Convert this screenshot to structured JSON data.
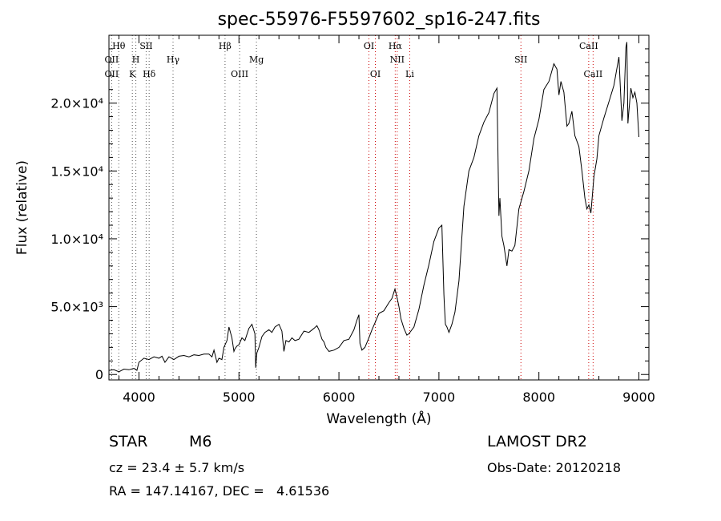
{
  "chart_data": {
    "type": "line",
    "title": "spec-55976-F5597602_sp16-247.fits",
    "xlabel": "Wavelength (Å)",
    "ylabel": "Flux (relative)",
    "xlim": [
      3700,
      9100
    ],
    "ylim": [
      -400,
      25000
    ],
    "x_ticks": [
      {
        "value": 4000,
        "label": "4000"
      },
      {
        "value": 5000,
        "label": "5000"
      },
      {
        "value": 6000,
        "label": "6000"
      },
      {
        "value": 7000,
        "label": "7000"
      },
      {
        "value": 8000,
        "label": "8000"
      },
      {
        "value": 9000,
        "label": "9000"
      }
    ],
    "y_ticks": [
      {
        "value": 0,
        "label": "0"
      },
      {
        "value": 5000,
        "label": "5.0×10³"
      },
      {
        "value": 10000,
        "label": "1.0×10⁴"
      },
      {
        "value": 15000,
        "label": "1.5×10⁴"
      },
      {
        "value": 20000,
        "label": "2.0×10⁴"
      }
    ],
    "series": [
      {
        "color": "#000000",
        "x": [
          3700,
          3750,
          3800,
          3850,
          3900,
          3950,
          3980,
          4000,
          4050,
          4100,
          4150,
          4200,
          4230,
          4260,
          4300,
          4350,
          4400,
          4450,
          4500,
          4550,
          4600,
          4650,
          4700,
          4730,
          4750,
          4780,
          4800,
          4830,
          4850,
          4880,
          4900,
          4930,
          4950,
          4960,
          4980,
          5000,
          5030,
          5060,
          5100,
          5130,
          5160,
          5168,
          5172,
          5180,
          5200,
          5230,
          5260,
          5300,
          5330,
          5360,
          5400,
          5430,
          5450,
          5470,
          5500,
          5530,
          5560,
          5600,
          5650,
          5700,
          5750,
          5780,
          5800,
          5830,
          5850,
          5870,
          5900,
          5950,
          6000,
          6050,
          6100,
          6150,
          6180,
          6200,
          6210,
          6230,
          6260,
          6300,
          6330,
          6360,
          6400,
          6450,
          6500,
          6530,
          6560,
          6580,
          6600,
          6620,
          6650,
          6680,
          6700,
          6750,
          6800,
          6850,
          6900,
          6950,
          7000,
          7030,
          7050,
          7055,
          7065,
          7080,
          7100,
          7130,
          7160,
          7200,
          7250,
          7300,
          7350,
          7400,
          7450,
          7500,
          7550,
          7580,
          7590,
          7600,
          7610,
          7630,
          7650,
          7680,
          7700,
          7730,
          7760,
          7800,
          7850,
          7900,
          7950,
          8000,
          8050,
          8100,
          8150,
          8180,
          8200,
          8220,
          8250,
          8280,
          8300,
          8330,
          8360,
          8400,
          8430,
          8460,
          8480,
          8500,
          8520,
          8550,
          8580,
          8600,
          8650,
          8700,
          8750,
          8800,
          8830,
          8850,
          8870,
          8880,
          8890,
          8900,
          8920,
          8940,
          8960,
          8980,
          9000
        ],
        "y": [
          300,
          350,
          200,
          400,
          350,
          450,
          300,
          900,
          1200,
          1100,
          1300,
          1200,
          1350,
          900,
          1300,
          1100,
          1350,
          1400,
          1300,
          1450,
          1400,
          1500,
          1500,
          1300,
          1800,
          900,
          1200,
          1100,
          2000,
          2500,
          3500,
          2700,
          1700,
          1900,
          2100,
          2200,
          2700,
          2500,
          3400,
          3700,
          3000,
          500,
          900,
          1600,
          2000,
          2800,
          3100,
          3300,
          3100,
          3500,
          3700,
          3200,
          1700,
          2500,
          2400,
          2700,
          2500,
          2600,
          3200,
          3100,
          3400,
          3600,
          3300,
          2600,
          2400,
          2000,
          1700,
          1800,
          2000,
          2500,
          2600,
          3300,
          4000,
          4400,
          2300,
          1800,
          2000,
          2700,
          3300,
          3800,
          4500,
          4700,
          5300,
          5600,
          6300,
          5700,
          5000,
          4100,
          3400,
          2900,
          3000,
          3500,
          4800,
          6600,
          8100,
          9800,
          10800,
          11000,
          5900,
          5000,
          3700,
          3500,
          3100,
          3700,
          4600,
          6900,
          12400,
          15000,
          16000,
          17600,
          18600,
          19300,
          20700,
          21100,
          16600,
          11700,
          13000,
          10200,
          9500,
          8000,
          9200,
          9100,
          9500,
          12200,
          13500,
          15000,
          17400,
          18800,
          21000,
          21600,
          22900,
          22500,
          20600,
          21600,
          20800,
          18300,
          18500,
          19400,
          17600,
          16800,
          15000,
          13000,
          12200,
          12500,
          11900,
          14600,
          15900,
          17600,
          18900,
          20100,
          21300,
          23400,
          18700,
          20000,
          24100,
          24500,
          18500,
          19400,
          21100,
          20400,
          20800,
          20000,
          17500
        ]
      }
    ],
    "line_markers": [
      {
        "label": "Hθ",
        "wavelength": 3798,
        "row": 1
      },
      {
        "label": "OII",
        "wavelength": 3727,
        "row": 2
      },
      {
        "label": "OII",
        "wavelength": 3727,
        "row": 3
      },
      {
        "label": "SII",
        "wavelength": 4072,
        "row": 1
      },
      {
        "label": "H",
        "wavelength": 3969,
        "row": 2
      },
      {
        "label": "K",
        "wavelength": 3934,
        "row": 3
      },
      {
        "label": "Hδ",
        "wavelength": 4102,
        "row": 3
      },
      {
        "label": "Hγ",
        "wavelength": 4341,
        "row": 2
      },
      {
        "label": "Hβ",
        "wavelength": 4861,
        "row": 1
      },
      {
        "label": "OIII",
        "wavelength": 5007,
        "row": 3
      },
      {
        "label": "Mg",
        "wavelength": 5175,
        "row": 2
      },
      {
        "label": "OI",
        "wavelength": 6300,
        "row": 1
      },
      {
        "label": "OI",
        "wavelength": 6364,
        "row": 3
      },
      {
        "label": "Hα",
        "wavelength": 6563,
        "row": 1
      },
      {
        "label": "NII",
        "wavelength": 6583,
        "row": 2
      },
      {
        "label": "Li",
        "wavelength": 6708,
        "row": 3
      },
      {
        "label": "SII",
        "wavelength": 7820,
        "row": 2
      },
      {
        "label": "CaII",
        "wavelength": 8498,
        "row": 1
      },
      {
        "label": "CaII",
        "wavelength": 8542,
        "row": 3
      }
    ],
    "marker_lines": [
      {
        "wavelength": 3727,
        "color": "#555555"
      },
      {
        "wavelength": 3798,
        "color": "#555555"
      },
      {
        "wavelength": 3934,
        "color": "#555555"
      },
      {
        "wavelength": 3969,
        "color": "#555555"
      },
      {
        "wavelength": 4072,
        "color": "#555555"
      },
      {
        "wavelength": 4102,
        "color": "#555555"
      },
      {
        "wavelength": 4341,
        "color": "#555555"
      },
      {
        "wavelength": 4861,
        "color": "#555555"
      },
      {
        "wavelength": 5007,
        "color": "#555555"
      },
      {
        "wavelength": 5175,
        "color": "#555555"
      },
      {
        "wavelength": 6300,
        "color": "#cc0000"
      },
      {
        "wavelength": 6364,
        "color": "#cc0000"
      },
      {
        "wavelength": 6563,
        "color": "#cc0000"
      },
      {
        "wavelength": 6583,
        "color": "#cc0000"
      },
      {
        "wavelength": 6708,
        "color": "#cc0000"
      },
      {
        "wavelength": 7820,
        "color": "#cc0000"
      },
      {
        "wavelength": 8498,
        "color": "#cc0000"
      },
      {
        "wavelength": 8542,
        "color": "#cc0000"
      }
    ],
    "grid": false
  },
  "info": {
    "object_class": "STAR",
    "subclass": "M6",
    "survey": "LAMOST DR2",
    "redshift_text": "cz = 23.4 ± 5.7 km/s",
    "obs_date_text": "Obs-Date: 20120218",
    "coords_text": "RA = 147.14167, DEC =   4.61536"
  }
}
